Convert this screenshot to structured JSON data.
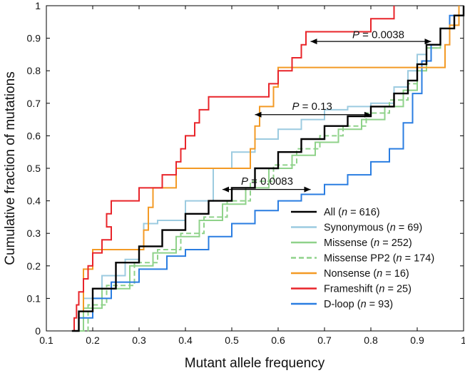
{
  "chart_data": {
    "type": "line",
    "title": "",
    "xlabel": "Mutant allele frequency",
    "ylabel": "Cumulative fraction of mutations",
    "xlim": [
      0.1,
      1
    ],
    "ylim": [
      0,
      1
    ],
    "xticks": [
      0.1,
      0.2,
      0.3,
      0.4,
      0.5,
      0.6,
      0.7,
      0.8,
      0.9,
      1
    ],
    "xtick_labels": [
      "0.1",
      "0.2",
      "0.3",
      "0.4",
      "0.5",
      "0.6",
      "0.7",
      "0.8",
      "0.9",
      "1"
    ],
    "yticks": [
      0,
      0.1,
      0.2,
      0.3,
      0.4,
      0.5,
      0.6,
      0.7,
      0.8,
      0.9,
      1
    ],
    "ytick_labels": [
      "0",
      "0.1",
      "0.2",
      "0.3",
      "0.4",
      "0.5",
      "0.6",
      "0.7",
      "0.8",
      "0.9",
      "1"
    ],
    "grid": false,
    "legend_position": "bottom-right",
    "series": [
      {
        "name": "All",
        "n_label": "616",
        "color": "#000000",
        "dash": false,
        "points": [
          [
            0.155,
            0
          ],
          [
            0.17,
            0.06
          ],
          [
            0.2,
            0.13
          ],
          [
            0.25,
            0.21
          ],
          [
            0.3,
            0.26
          ],
          [
            0.35,
            0.31
          ],
          [
            0.4,
            0.36
          ],
          [
            0.45,
            0.4
          ],
          [
            0.5,
            0.44
          ],
          [
            0.55,
            0.5
          ],
          [
            0.6,
            0.55
          ],
          [
            0.65,
            0.59
          ],
          [
            0.7,
            0.63
          ],
          [
            0.75,
            0.66
          ],
          [
            0.8,
            0.69
          ],
          [
            0.85,
            0.73
          ],
          [
            0.88,
            0.77
          ],
          [
            0.9,
            0.82
          ],
          [
            0.92,
            0.88
          ],
          [
            0.95,
            0.93
          ],
          [
            0.98,
            0.97
          ],
          [
            1.0,
            1.0
          ]
        ]
      },
      {
        "name": "Synonymous",
        "n_label": "69",
        "color": "#9ccbe0",
        "dash": false,
        "points": [
          [
            0.155,
            0
          ],
          [
            0.18,
            0.1
          ],
          [
            0.22,
            0.17
          ],
          [
            0.27,
            0.22
          ],
          [
            0.3,
            0.26
          ],
          [
            0.31,
            0.33
          ],
          [
            0.34,
            0.34
          ],
          [
            0.4,
            0.4
          ],
          [
            0.46,
            0.5
          ],
          [
            0.5,
            0.55
          ],
          [
            0.55,
            0.59
          ],
          [
            0.6,
            0.62
          ],
          [
            0.65,
            0.65
          ],
          [
            0.7,
            0.68
          ],
          [
            0.75,
            0.69
          ],
          [
            0.8,
            0.7
          ],
          [
            0.85,
            0.75
          ],
          [
            0.88,
            0.8
          ],
          [
            0.9,
            0.85
          ],
          [
            0.92,
            0.88
          ],
          [
            0.95,
            0.93
          ],
          [
            0.98,
            0.97
          ],
          [
            1.0,
            1.0
          ]
        ]
      },
      {
        "name": "Missense",
        "n_label": "252",
        "color": "#8fd28a",
        "dash": false,
        "points": [
          [
            0.155,
            0
          ],
          [
            0.18,
            0.07
          ],
          [
            0.22,
            0.13
          ],
          [
            0.28,
            0.2
          ],
          [
            0.33,
            0.24
          ],
          [
            0.38,
            0.29
          ],
          [
            0.43,
            0.34
          ],
          [
            0.48,
            0.39
          ],
          [
            0.53,
            0.44
          ],
          [
            0.58,
            0.5
          ],
          [
            0.63,
            0.54
          ],
          [
            0.68,
            0.58
          ],
          [
            0.73,
            0.62
          ],
          [
            0.78,
            0.65
          ],
          [
            0.83,
            0.69
          ],
          [
            0.87,
            0.74
          ],
          [
            0.9,
            0.8
          ],
          [
            0.92,
            0.87
          ],
          [
            0.95,
            0.93
          ],
          [
            0.98,
            0.97
          ],
          [
            1.0,
            1.0
          ]
        ]
      },
      {
        "name": "Missense PP2",
        "n_label": "174",
        "color": "#8fd28a",
        "dash": true,
        "points": [
          [
            0.155,
            0
          ],
          [
            0.19,
            0.08
          ],
          [
            0.23,
            0.14
          ],
          [
            0.29,
            0.21
          ],
          [
            0.34,
            0.25
          ],
          [
            0.39,
            0.3
          ],
          [
            0.44,
            0.35
          ],
          [
            0.49,
            0.4
          ],
          [
            0.54,
            0.46
          ],
          [
            0.59,
            0.51
          ],
          [
            0.64,
            0.56
          ],
          [
            0.69,
            0.6
          ],
          [
            0.74,
            0.63
          ],
          [
            0.79,
            0.67
          ],
          [
            0.84,
            0.71
          ],
          [
            0.88,
            0.76
          ],
          [
            0.9,
            0.81
          ],
          [
            0.92,
            0.87
          ],
          [
            0.95,
            0.93
          ],
          [
            0.98,
            0.97
          ],
          [
            1.0,
            1.0
          ]
        ]
      },
      {
        "name": "Nonsense",
        "n_label": "16",
        "color": "#f39a25",
        "dash": false,
        "points": [
          [
            0.16,
            0
          ],
          [
            0.17,
            0.06
          ],
          [
            0.18,
            0.19
          ],
          [
            0.2,
            0.25
          ],
          [
            0.3,
            0.25
          ],
          [
            0.31,
            0.31
          ],
          [
            0.32,
            0.38
          ],
          [
            0.33,
            0.44
          ],
          [
            0.37,
            0.44
          ],
          [
            0.38,
            0.5
          ],
          [
            0.53,
            0.5
          ],
          [
            0.54,
            0.56
          ],
          [
            0.55,
            0.63
          ],
          [
            0.56,
            0.69
          ],
          [
            0.59,
            0.75
          ],
          [
            0.6,
            0.81
          ],
          [
            0.96,
            0.81
          ],
          [
            0.96,
            0.88
          ],
          [
            0.97,
            0.94
          ],
          [
            0.99,
            1.0
          ]
        ]
      },
      {
        "name": "Frameshift",
        "n_label": "25",
        "color": "#e8242a",
        "dash": false,
        "points": [
          [
            0.155,
            0
          ],
          [
            0.16,
            0.04
          ],
          [
            0.165,
            0.08
          ],
          [
            0.17,
            0.12
          ],
          [
            0.18,
            0.16
          ],
          [
            0.19,
            0.2
          ],
          [
            0.2,
            0.24
          ],
          [
            0.22,
            0.28
          ],
          [
            0.24,
            0.32
          ],
          [
            0.23,
            0.36
          ],
          [
            0.24,
            0.4
          ],
          [
            0.28,
            0.4
          ],
          [
            0.3,
            0.44
          ],
          [
            0.34,
            0.44
          ],
          [
            0.35,
            0.48
          ],
          [
            0.38,
            0.52
          ],
          [
            0.39,
            0.56
          ],
          [
            0.4,
            0.6
          ],
          [
            0.42,
            0.64
          ],
          [
            0.43,
            0.68
          ],
          [
            0.45,
            0.72
          ],
          [
            0.57,
            0.72
          ],
          [
            0.58,
            0.76
          ],
          [
            0.6,
            0.8
          ],
          [
            0.63,
            0.84
          ],
          [
            0.65,
            0.88
          ],
          [
            0.66,
            0.92
          ],
          [
            0.79,
            0.92
          ],
          [
            0.8,
            0.96
          ],
          [
            0.85,
            1.0
          ]
        ]
      },
      {
        "name": "D-loop",
        "n_label": "93",
        "color": "#2a7de1",
        "dash": false,
        "points": [
          [
            0.155,
            0
          ],
          [
            0.17,
            0.04
          ],
          [
            0.2,
            0.1
          ],
          [
            0.24,
            0.15
          ],
          [
            0.3,
            0.19
          ],
          [
            0.36,
            0.23
          ],
          [
            0.4,
            0.25
          ],
          [
            0.45,
            0.29
          ],
          [
            0.5,
            0.33
          ],
          [
            0.55,
            0.37
          ],
          [
            0.6,
            0.4
          ],
          [
            0.65,
            0.42
          ],
          [
            0.7,
            0.45
          ],
          [
            0.75,
            0.48
          ],
          [
            0.8,
            0.52
          ],
          [
            0.84,
            0.56
          ],
          [
            0.87,
            0.64
          ],
          [
            0.89,
            0.73
          ],
          [
            0.91,
            0.83
          ],
          [
            0.93,
            0.88
          ],
          [
            0.95,
            0.93
          ],
          [
            0.97,
            0.97
          ],
          [
            1.0,
            1.0
          ]
        ]
      }
    ],
    "annotations": [
      {
        "label": "P = 0.0038",
        "italic_part": "P",
        "value_part": " = 0.0038",
        "from": [
          0.67,
          0.89
        ],
        "to": [
          0.93,
          0.89
        ],
        "text_at": [
          0.76,
          0.9
        ]
      },
      {
        "label": "P = 0.13",
        "italic_part": "P",
        "value_part": " = 0.13",
        "from": [
          0.55,
          0.665
        ],
        "to": [
          0.8,
          0.665
        ],
        "text_at": [
          0.63,
          0.68
        ]
      },
      {
        "label": "P = 0.0083",
        "italic_part": "P",
        "value_part": " = 0.0083",
        "from": [
          0.48,
          0.435
        ],
        "to": [
          0.67,
          0.435
        ],
        "text_at": [
          0.52,
          0.45
        ]
      }
    ]
  }
}
